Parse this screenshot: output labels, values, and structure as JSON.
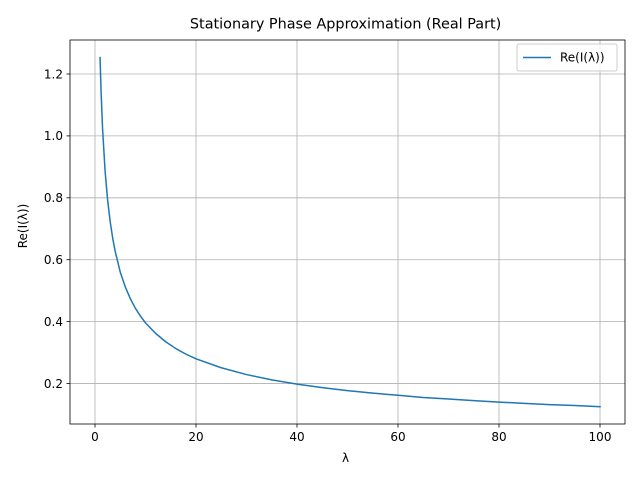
{
  "chart_data": {
    "type": "line",
    "title": "Stationary Phase Approximation (Real Part)",
    "xlabel": "λ",
    "ylabel": "Re(I(λ))",
    "xlim": [
      -4.95,
      104.95
    ],
    "ylim": [
      0.0693,
      1.3098
    ],
    "xticks": [
      0,
      20,
      40,
      60,
      80,
      100
    ],
    "yticks": [
      0.2,
      0.4,
      0.6,
      0.8,
      1.0,
      1.2
    ],
    "ytick_labels": [
      "0.2",
      "0.4",
      "0.6",
      "0.8",
      "1.0",
      "1.2"
    ],
    "grid": true,
    "legend_position": "top-right",
    "series": [
      {
        "name": "Re(I(λ))",
        "color": "#1f77b4",
        "x": [
          1,
          1.2,
          1.5,
          2,
          2.5,
          3,
          3.5,
          4,
          5,
          6,
          7,
          8,
          9,
          10,
          12,
          14,
          16,
          18,
          20,
          25,
          30,
          35,
          40,
          45,
          50,
          55,
          60,
          65,
          70,
          75,
          80,
          85,
          90,
          95,
          100
        ],
        "y": [
          1.253,
          1.144,
          1.023,
          0.886,
          0.793,
          0.724,
          0.67,
          0.627,
          0.56,
          0.512,
          0.474,
          0.443,
          0.418,
          0.396,
          0.362,
          0.335,
          0.313,
          0.295,
          0.28,
          0.251,
          0.229,
          0.212,
          0.198,
          0.187,
          0.177,
          0.169,
          0.162,
          0.155,
          0.15,
          0.145,
          0.14,
          0.136,
          0.132,
          0.129,
          0.125
        ]
      }
    ]
  }
}
